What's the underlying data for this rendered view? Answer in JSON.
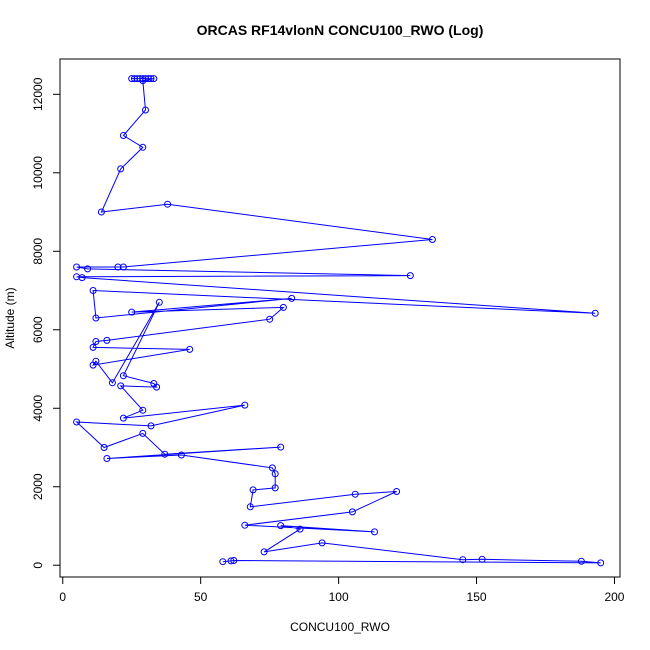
{
  "chart_data": {
    "type": "line",
    "title": "ORCAS RF14vlonN CONCU100_RWO (Log)",
    "xlabel": "CONCU100_RWO",
    "ylabel": "Altitude (m)",
    "xlim": [
      -1,
      202
    ],
    "ylim": [
      -300,
      12900
    ],
    "xticks": [
      0,
      50,
      100,
      150,
      200
    ],
    "yticks": [
      0,
      2000,
      4000,
      6000,
      8000,
      10000,
      12000
    ],
    "series_color": "#0000ff",
    "markers": "open-circle",
    "points": [
      [
        25,
        12400
      ],
      [
        26,
        12400
      ],
      [
        27,
        12400
      ],
      [
        28,
        12400
      ],
      [
        29,
        12400
      ],
      [
        30,
        12400
      ],
      [
        31,
        12400
      ],
      [
        32,
        12400
      ],
      [
        33,
        12400
      ],
      [
        29,
        12350
      ],
      [
        30,
        11600
      ],
      [
        22,
        10950
      ],
      [
        29,
        10650
      ],
      [
        21,
        10100
      ],
      [
        14,
        9000
      ],
      [
        38,
        9200
      ],
      [
        134,
        8300
      ],
      [
        22,
        7600
      ],
      [
        20,
        7600
      ],
      [
        5,
        7600
      ],
      [
        9,
        7550
      ],
      [
        126,
        7380
      ],
      [
        5,
        7350
      ],
      [
        7,
        7330
      ],
      [
        193,
        6420
      ],
      [
        11,
        7000
      ],
      [
        12,
        6300
      ],
      [
        83,
        6800
      ],
      [
        25,
        6450
      ],
      [
        80,
        6570
      ],
      [
        75,
        6270
      ],
      [
        16,
        5730
      ],
      [
        12,
        5700
      ],
      [
        11,
        5550
      ],
      [
        46,
        5500
      ],
      [
        11,
        5100
      ],
      [
        12,
        5200
      ],
      [
        18,
        4650
      ],
      [
        35,
        6700
      ],
      [
        22,
        4830
      ],
      [
        33,
        4630
      ],
      [
        34,
        4540
      ],
      [
        21,
        4570
      ],
      [
        29,
        3950
      ],
      [
        22,
        3750
      ],
      [
        66,
        4080
      ],
      [
        32,
        3550
      ],
      [
        5,
        3650
      ],
      [
        15,
        3000
      ],
      [
        29,
        3360
      ],
      [
        37,
        2830
      ],
      [
        79,
        3010
      ],
      [
        16,
        2720
      ],
      [
        43,
        2810
      ],
      [
        76,
        2480
      ],
      [
        77,
        2330
      ],
      [
        77,
        1970
      ],
      [
        69,
        1920
      ],
      [
        68,
        1490
      ],
      [
        106,
        1810
      ],
      [
        121,
        1880
      ],
      [
        105,
        1360
      ],
      [
        66,
        1020
      ],
      [
        113,
        850
      ],
      [
        79,
        1010
      ],
      [
        86,
        920
      ],
      [
        73,
        340
      ],
      [
        94,
        570
      ],
      [
        145,
        140
      ],
      [
        152,
        150
      ],
      [
        188,
        100
      ],
      [
        195,
        60
      ],
      [
        62,
        120
      ],
      [
        61,
        110
      ],
      [
        58,
        90
      ]
    ]
  }
}
